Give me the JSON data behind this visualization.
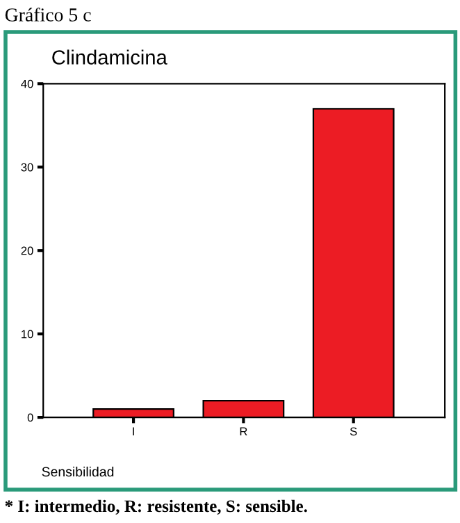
{
  "chart_data": {
    "type": "bar",
    "title": "Clindamicina",
    "xlabel": "Sensibilidad",
    "categories": [
      "I",
      "R",
      "S"
    ],
    "values": [
      1,
      2,
      37
    ],
    "color": "#ec1c24",
    "ylim": [
      0,
      40
    ],
    "yticks": [
      0,
      10,
      20,
      30,
      40
    ],
    "grid": false,
    "legend": false,
    "annotations": [
      "Gráfico 5 c",
      "* I: intermedio, R: resistente, S: sensible."
    ]
  }
}
